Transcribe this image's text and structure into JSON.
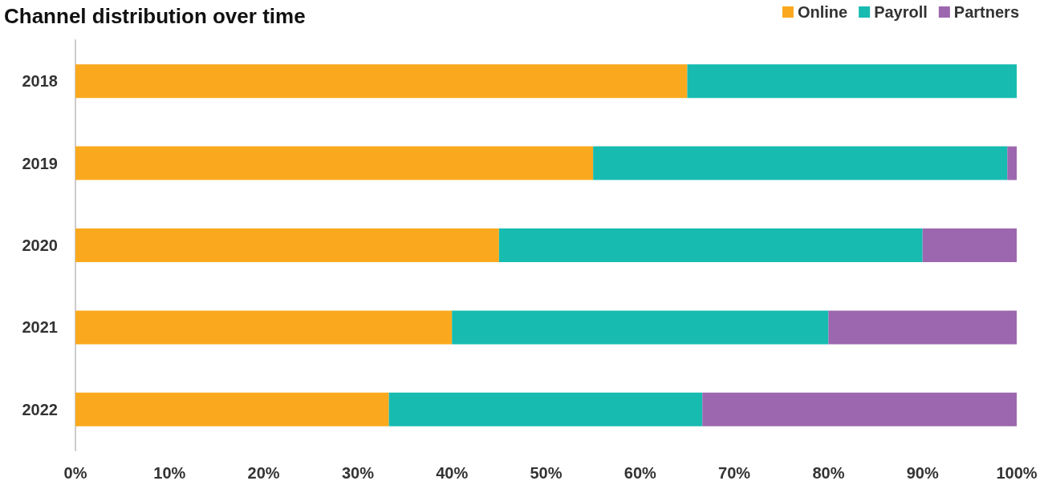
{
  "chart_data": {
    "type": "bar",
    "title": "Channel distribution over time",
    "orientation": "horizontal",
    "stacked": true,
    "categories": [
      "2018",
      "2019",
      "2020",
      "2021",
      "2022"
    ],
    "series": [
      {
        "name": "Online",
        "color": "#faa91e",
        "values": [
          65,
          55,
          45,
          40,
          33.3
        ]
      },
      {
        "name": "Payroll",
        "color": "#17bbb0",
        "values": [
          35,
          44,
          45,
          40,
          33.3
        ]
      },
      {
        "name": "Partners",
        "color": "#9d67af",
        "values": [
          0,
          1,
          10,
          20,
          33.4
        ]
      }
    ],
    "xlim": [
      0,
      100
    ],
    "xticks": [
      {
        "value": 0,
        "label": "0%"
      },
      {
        "value": 10,
        "label": "10%"
      },
      {
        "value": 20,
        "label": "20%"
      },
      {
        "value": 30,
        "label": "30%"
      },
      {
        "value": 40,
        "label": "40%"
      },
      {
        "value": 50,
        "label": "50%"
      },
      {
        "value": 60,
        "label": "60%"
      },
      {
        "value": 70,
        "label": "70%"
      },
      {
        "value": 80,
        "label": "80%"
      },
      {
        "value": 90,
        "label": "90%"
      },
      {
        "value": 100,
        "label": "100%"
      }
    ],
    "grid": false,
    "legend": "top right"
  }
}
